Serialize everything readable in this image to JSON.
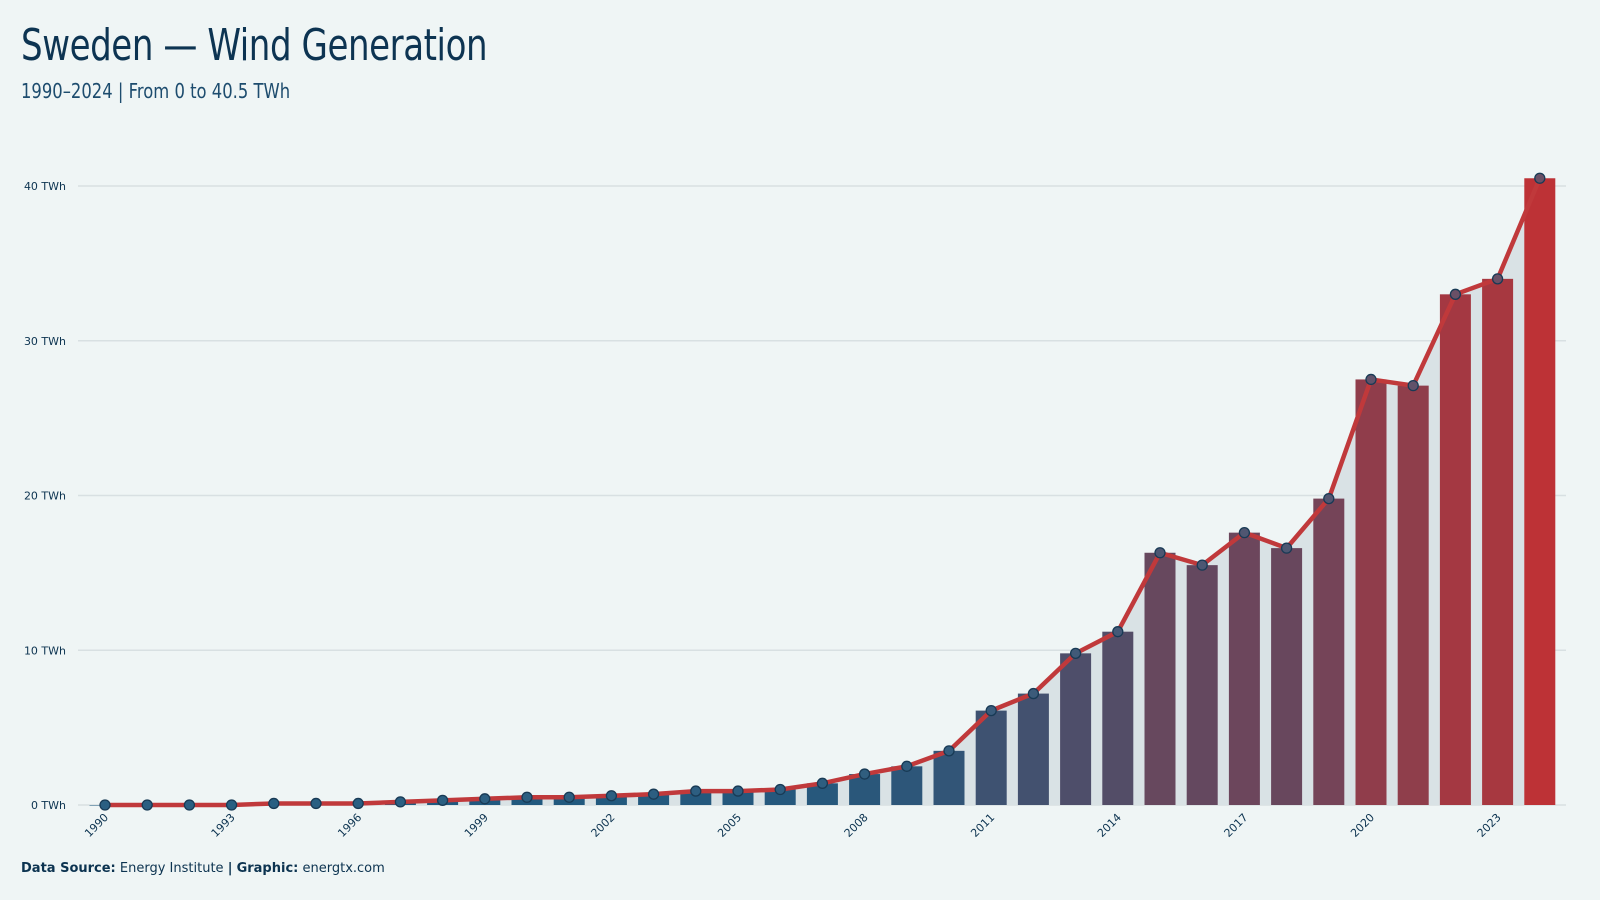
{
  "header": {
    "title": "Sweden — Wind Generation",
    "subtitle": "1990–2024 | From 0 to 40.5 TWh"
  },
  "footer": {
    "source_label": "Data Source:",
    "source_value": "Energy Institute",
    "separator": "|",
    "graphic_label": "Graphic:",
    "graphic_value": "energtx.com"
  },
  "colors": {
    "background": "#eff5f5",
    "bar_start": "#1e5a80",
    "bar_end": "#bd3236",
    "line": "#c0393b",
    "area": "#d9e2e5",
    "grid": "#d8e0e2",
    "text": "#0c3350"
  },
  "chart_data": {
    "type": "bar",
    "title": "Sweden — Wind Generation",
    "subtitle": "1990–2024 | From 0 to 40.5 TWh",
    "y_unit": "TWh",
    "ylim": [
      0,
      40
    ],
    "y_ticks": [
      0,
      10,
      20,
      30,
      40
    ],
    "y_tick_labels": [
      "0 TWh",
      "10 TWh",
      "20 TWh",
      "30 TWh",
      "40 TWh"
    ],
    "x_tick_labels": [
      "1990",
      "1993",
      "1996",
      "1999",
      "2002",
      "2005",
      "2008",
      "2011",
      "2014",
      "2017",
      "2020",
      "2023"
    ],
    "grid": true,
    "categories": [
      1990,
      1991,
      1992,
      1993,
      1994,
      1995,
      1996,
      1997,
      1998,
      1999,
      2000,
      2001,
      2002,
      2003,
      2004,
      2005,
      2006,
      2007,
      2008,
      2009,
      2010,
      2011,
      2012,
      2013,
      2014,
      2015,
      2016,
      2017,
      2018,
      2019,
      2020,
      2021,
      2022,
      2023,
      2024
    ],
    "values": [
      0.0,
      0.0,
      0.0,
      0.0,
      0.1,
      0.1,
      0.1,
      0.2,
      0.3,
      0.4,
      0.5,
      0.5,
      0.6,
      0.7,
      0.9,
      0.9,
      1.0,
      1.4,
      2.0,
      2.5,
      3.5,
      6.1,
      7.2,
      9.8,
      11.2,
      16.3,
      15.5,
      17.6,
      16.6,
      19.8,
      27.5,
      27.1,
      33.0,
      34.0,
      40.5
    ],
    "overlay": {
      "type": "line",
      "markers": true,
      "values": [
        0.0,
        0.0,
        0.0,
        0.0,
        0.1,
        0.1,
        0.1,
        0.2,
        0.3,
        0.4,
        0.5,
        0.5,
        0.6,
        0.7,
        0.9,
        0.9,
        1.0,
        1.4,
        2.0,
        2.5,
        3.5,
        6.1,
        7.2,
        9.8,
        11.2,
        16.3,
        15.5,
        17.6,
        16.6,
        19.8,
        27.5,
        27.1,
        33.0,
        34.0,
        40.5
      ]
    }
  }
}
